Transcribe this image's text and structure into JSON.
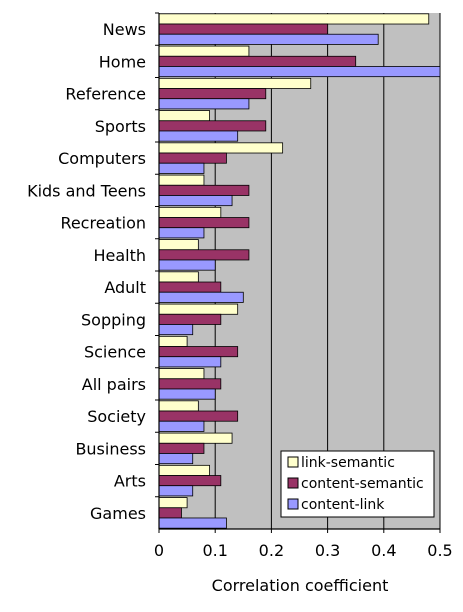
{
  "chart_data": {
    "type": "bar",
    "orientation": "horizontal",
    "title": "",
    "xlabel": "Correlation coefficient",
    "ylabel": "",
    "xlim": [
      0,
      0.5
    ],
    "x_ticks": [
      "0",
      "0.1",
      "0.2",
      "0.3",
      "0.4",
      "0.5"
    ],
    "grid": "vertical lines at 0.1 steps",
    "legend_position": "bottom-right",
    "categories": [
      "News",
      "Home",
      "Reference",
      "Sports",
      "Computers",
      "Kids and Teens",
      "Recreation",
      "Health",
      "Adult",
      "Sopping",
      "Science",
      "All pairs",
      "Society",
      "Business",
      "Arts",
      "Games"
    ],
    "series": [
      {
        "name": "link-semantic",
        "color": "#ffffcc",
        "values": [
          0.48,
          0.16,
          0.27,
          0.09,
          0.22,
          0.08,
          0.11,
          0.07,
          0.07,
          0.14,
          0.05,
          0.08,
          0.07,
          0.13,
          0.09,
          0.05
        ]
      },
      {
        "name": "content-semantic",
        "color": "#993366",
        "values": [
          0.3,
          0.35,
          0.19,
          0.19,
          0.12,
          0.16,
          0.16,
          0.16,
          0.11,
          0.11,
          0.14,
          0.11,
          0.14,
          0.08,
          0.11,
          0.04
        ]
      },
      {
        "name": "content-link",
        "color": "#9999ff",
        "values": [
          0.39,
          0.5,
          0.16,
          0.14,
          0.08,
          0.13,
          0.08,
          0.1,
          0.15,
          0.06,
          0.11,
          0.1,
          0.08,
          0.06,
          0.06,
          0.12
        ]
      }
    ],
    "plot_background": "#c0c0c0"
  }
}
